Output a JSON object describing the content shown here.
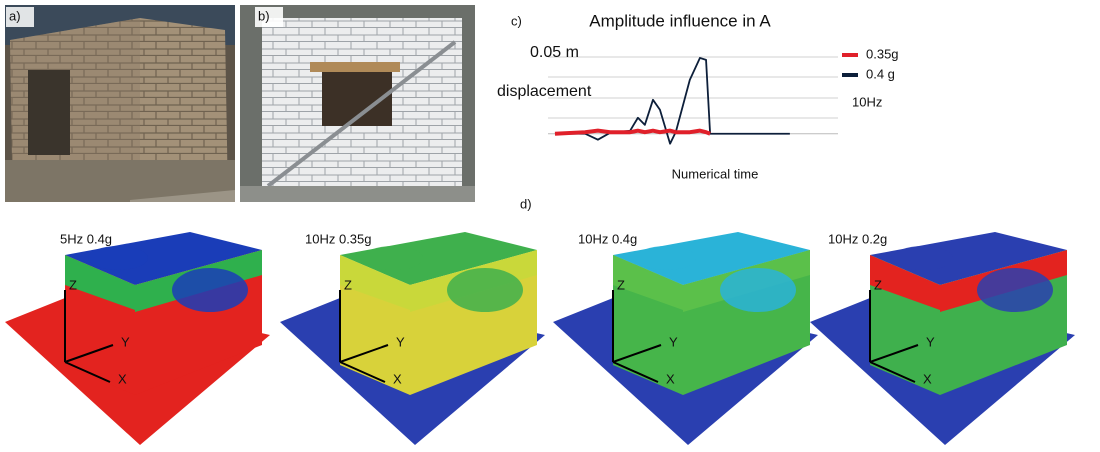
{
  "panels": {
    "a": {
      "label": "a)"
    },
    "b": {
      "label": "b)"
    },
    "c": {
      "label": "c)"
    }
  },
  "chart_data": {
    "type": "line",
    "title": "Amplitude influence in A",
    "y_label": "displacement",
    "x_label": "Numerical time",
    "annotation": "10Hz",
    "x": [
      2.4,
      12.8,
      17.2,
      21.4,
      28.3,
      31.0,
      33.4,
      36.2,
      38.6,
      42.1,
      44.1,
      48.9,
      52.4,
      54.5,
      55.9,
      83.4
    ],
    "xlim": [
      0,
      100
    ],
    "ylim": [
      -0.008,
      0.05
    ],
    "yticks": [
      {
        "value": 0.05,
        "label": "0.05 m"
      }
    ],
    "series": [
      {
        "name": "0.35g",
        "color": "#e0202a",
        "values": [
          0,
          0.001,
          0.002,
          0.001,
          0.001,
          0.002,
          0.001,
          0.002,
          0.001,
          0.002,
          0.001,
          0.001,
          0.002,
          0.001,
          0,
          null
        ]
      },
      {
        "name": "0.4 g",
        "color": "#0d1f3a",
        "values": [
          0,
          0,
          -0.0039,
          0.0006,
          0.0019,
          0.0104,
          0.0058,
          0.0221,
          0.0156,
          -0.0065,
          0.0013,
          0.0351,
          0.0494,
          0.0481,
          0,
          0
        ]
      }
    ]
  },
  "panel_d": {
    "label": "d)",
    "models": [
      {
        "title": "5Hz 0.4g",
        "axes": [
          "Z",
          "Y",
          "X"
        ]
      },
      {
        "title": "10Hz 0.35g",
        "axes": [
          "Z",
          "Y",
          "X"
        ]
      },
      {
        "title": "10Hz 0.4g",
        "axes": [
          "Z",
          "Y",
          "X"
        ]
      },
      {
        "title": "10Hz 0.2g",
        "axes": [
          "Z",
          "Y",
          "X"
        ]
      }
    ]
  }
}
